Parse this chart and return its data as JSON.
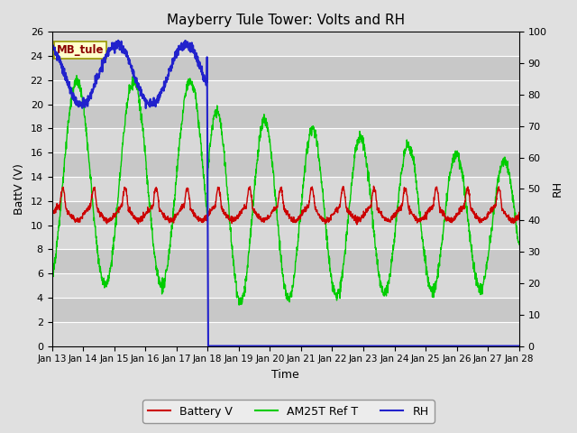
{
  "title": "Mayberry Tule Tower: Volts and RH",
  "xlabel": "Time",
  "ylabel_left": "BattV (V)",
  "ylabel_right": "RH",
  "annotation": "MB_tule",
  "left_ylim": [
    0,
    26
  ],
  "right_ylim": [
    0,
    100
  ],
  "left_yticks": [
    0,
    2,
    4,
    6,
    8,
    10,
    12,
    14,
    16,
    18,
    20,
    22,
    24,
    26
  ],
  "right_yticks": [
    0,
    10,
    20,
    30,
    40,
    50,
    60,
    70,
    80,
    90,
    100
  ],
  "bg_color": "#e0e0e0",
  "plot_bg_color": "#cccccc",
  "stripe_colors": [
    "#d8d8d8",
    "#c8c8c8"
  ],
  "xtick_labels": [
    "Jan 13",
    "Jan 14",
    "Jan 15",
    "Jan 16",
    "Jan 17",
    "Jan 18",
    "Jan 19",
    "Jan 20",
    "Jan 21",
    "Jan 22",
    "Jan 23",
    "Jan 24",
    "Jan 25",
    "Jan 26",
    "Jan 27",
    "Jan 28"
  ],
  "xtick_positions": [
    0,
    1,
    2,
    3,
    4,
    5,
    6,
    7,
    8,
    9,
    10,
    11,
    12,
    13,
    14,
    15
  ],
  "battery_color": "#cc0000",
  "green_color": "#00cc00",
  "blue_color": "#2222cc",
  "grid_color": "#ffffff",
  "figsize": [
    6.4,
    4.8
  ],
  "dpi": 100
}
